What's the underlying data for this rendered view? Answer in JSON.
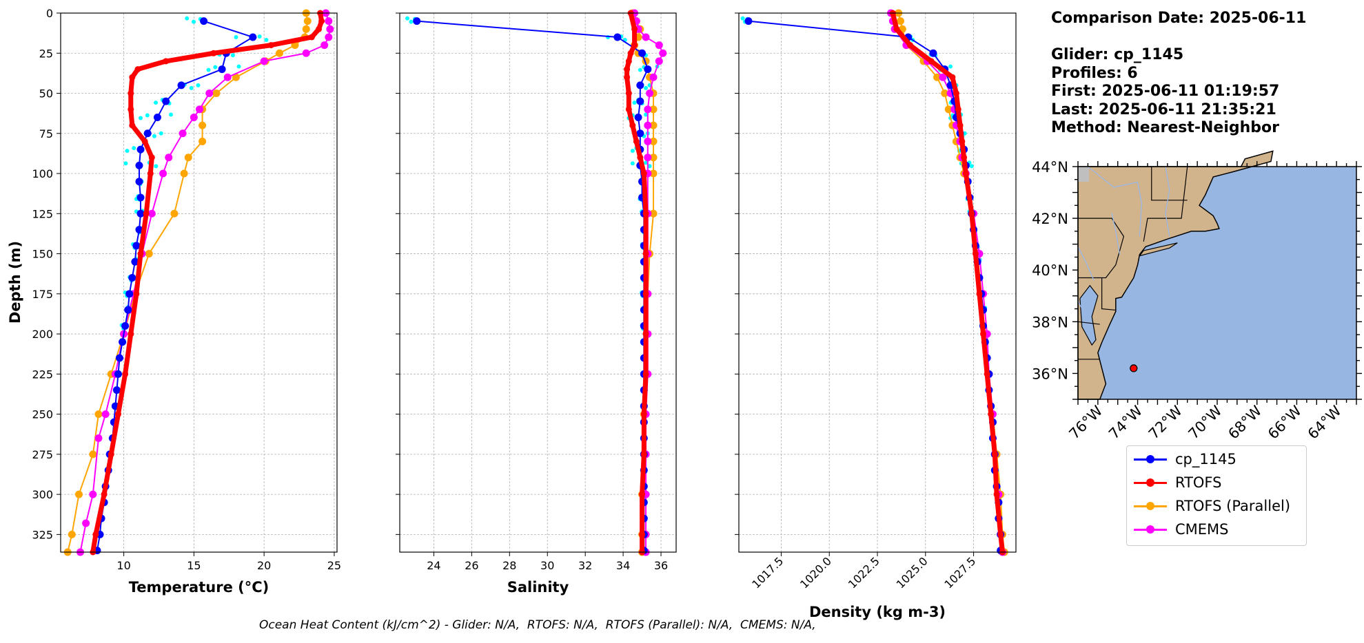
{
  "info": {
    "comparison_date": "Comparison Date: 2025-06-11",
    "glider": "Glider: cp_1145",
    "profiles": "Profiles: 6",
    "first": "First: 2025-06-11 01:19:57",
    "last": "Last: 2025-06-11 21:35:21",
    "method": "Method: Nearest-Neighbor"
  },
  "footer": "Ocean Heat Content (kJ/cm^2) - Glider: N/A,  RTOFS: N/A,  RTOFS (Parallel): N/A,  CMEMS: N/A,",
  "legend": [
    {
      "name": "cp_1145",
      "color": "#0000ff"
    },
    {
      "name": "RTOFS",
      "color": "#ff0000"
    },
    {
      "name": "RTOFS (Parallel)",
      "color": "#ffa500"
    },
    {
      "name": "CMEMS",
      "color": "#ff00ff"
    }
  ],
  "chart_data": [
    {
      "type": "line",
      "xlabel": "Temperature (°C)",
      "ylabel": "Depth (m)",
      "xlim": [
        5.5,
        25.2
      ],
      "ylim": [
        336,
        0
      ],
      "xticks": [
        10,
        15,
        20,
        25
      ],
      "yticks": [
        0,
        25,
        50,
        75,
        100,
        125,
        150,
        175,
        200,
        225,
        250,
        275,
        300,
        325
      ],
      "grid": true,
      "series": [
        {
          "name": "cp_1145",
          "color": "#0000ff",
          "depth": [
            5,
            15,
            25,
            35,
            45,
            55,
            65,
            75,
            85,
            95,
            105,
            115,
            125,
            135,
            145,
            155,
            165,
            175,
            185,
            195,
            205,
            215,
            225,
            235,
            245,
            255,
            265,
            275,
            285,
            295,
            305,
            315,
            325,
            335
          ],
          "values": [
            15.7,
            19.2,
            17.3,
            17.0,
            14.1,
            13.0,
            12.4,
            11.7,
            11.2,
            11.1,
            11.1,
            11.2,
            11.2,
            11.1,
            10.9,
            10.8,
            10.6,
            10.4,
            10.3,
            10.1,
            9.9,
            9.7,
            9.6,
            9.5,
            9.4,
            9.3,
            9.2,
            9.0,
            8.9,
            8.7,
            8.6,
            8.4,
            8.3,
            8.1
          ]
        },
        {
          "name": "RTOFS",
          "color": "#ff0000",
          "depth": [
            0,
            5,
            10,
            15,
            20,
            25,
            30,
            35,
            40,
            50,
            60,
            70,
            80,
            90,
            100,
            125,
            150,
            175,
            200,
            225,
            250,
            275,
            300,
            325,
            336
          ],
          "values": [
            24.0,
            24.1,
            23.9,
            23.4,
            20.5,
            16.4,
            13.0,
            11.0,
            10.6,
            10.5,
            10.5,
            10.6,
            11.5,
            12.0,
            11.9,
            11.6,
            11.2,
            10.9,
            10.5,
            10.1,
            9.6,
            9.1,
            8.6,
            8.0,
            7.8
          ]
        },
        {
          "name": "RTOFS (Parallel)",
          "color": "#ffa500",
          "depth": [
            0,
            5,
            10,
            15,
            20,
            25,
            30,
            40,
            50,
            60,
            70,
            80,
            90,
            100,
            125,
            150,
            175,
            200,
            225,
            250,
            275,
            300,
            325,
            336
          ],
          "values": [
            23.0,
            23.1,
            23.0,
            22.9,
            22.2,
            21.1,
            20.1,
            18.0,
            16.6,
            15.6,
            15.6,
            15.6,
            14.6,
            14.3,
            13.6,
            11.8,
            10.8,
            10.0,
            9.1,
            8.2,
            7.8,
            6.8,
            6.3,
            6.0
          ]
        },
        {
          "name": "CMEMS",
          "color": "#ff00ff",
          "depth": [
            0,
            5,
            10,
            15,
            20,
            25,
            30,
            40,
            50,
            60,
            65,
            75,
            90,
            100,
            125,
            150,
            175,
            185,
            200,
            225,
            250,
            265,
            300,
            318,
            336
          ],
          "values": [
            24.4,
            24.6,
            24.7,
            24.6,
            24.3,
            23.0,
            20.0,
            17.4,
            16.1,
            15.4,
            15.0,
            14.2,
            13.2,
            12.8,
            12.0,
            11.3,
            10.7,
            10.4,
            10.0,
            9.4,
            8.7,
            8.2,
            7.8,
            7.3,
            6.9
          ]
        }
      ]
    },
    {
      "type": "line",
      "xlabel": "Salinity",
      "xlim": [
        22.2,
        36.8
      ],
      "ylim": [
        336,
        0
      ],
      "xticks": [
        24,
        26,
        28,
        30,
        32,
        34,
        36
      ],
      "grid": true,
      "series": [
        {
          "name": "cp_1145",
          "color": "#0000ff",
          "depth": [
            5,
            15,
            25,
            35,
            45,
            55,
            65,
            75,
            85,
            95,
            105,
            115,
            125,
            135,
            145,
            155,
            165,
            175,
            185,
            195,
            205,
            215,
            225,
            235,
            245,
            255,
            265,
            275,
            285,
            295,
            305,
            315,
            325,
            335
          ],
          "values": [
            23.1,
            33.7,
            35.0,
            35.3,
            34.9,
            34.9,
            34.8,
            34.9,
            34.9,
            34.9,
            35.0,
            35.0,
            35.1,
            35.1,
            35.1,
            35.1,
            35.1,
            35.1,
            35.1,
            35.1,
            35.1,
            35.1,
            35.1,
            35.1,
            35.1,
            35.1,
            35.1,
            35.1,
            35.1,
            35.1,
            35.1,
            35.1,
            35.1,
            35.1
          ]
        },
        {
          "name": "RTOFS",
          "color": "#ff0000",
          "depth": [
            0,
            10,
            20,
            25,
            30,
            35,
            40,
            50,
            60,
            70,
            80,
            90,
            100,
            125,
            150,
            175,
            200,
            225,
            250,
            275,
            300,
            325,
            336
          ],
          "values": [
            34.4,
            34.6,
            34.6,
            34.4,
            34.3,
            34.2,
            34.2,
            34.3,
            34.3,
            34.5,
            34.7,
            34.9,
            35.1,
            35.2,
            35.2,
            35.2,
            35.2,
            35.2,
            35.1,
            35.1,
            35.0,
            35.0,
            35.0
          ]
        },
        {
          "name": "RTOFS (Parallel)",
          "color": "#ffa500",
          "depth": [
            0,
            5,
            10,
            15,
            20,
            25,
            30,
            35,
            40,
            50,
            60,
            70,
            80,
            90,
            100,
            125,
            150,
            175,
            200,
            225,
            250,
            275,
            300,
            325,
            336
          ],
          "values": [
            34.5,
            34.7,
            34.9,
            34.8,
            34.6,
            34.8,
            35.2,
            35.3,
            35.4,
            35.6,
            35.6,
            35.6,
            35.6,
            35.6,
            35.6,
            35.6,
            35.4,
            35.3,
            35.3,
            35.2,
            35.1,
            35.1,
            35.0,
            35.0,
            35.0
          ]
        },
        {
          "name": "CMEMS",
          "color": "#ff00ff",
          "depth": [
            0,
            5,
            10,
            15,
            20,
            25,
            30,
            40,
            50,
            60,
            70,
            80,
            90,
            100,
            125,
            150,
            175,
            200,
            225,
            250,
            275,
            300,
            325,
            336
          ],
          "values": [
            34.6,
            34.7,
            34.8,
            35.2,
            35.9,
            36.1,
            35.9,
            35.6,
            35.4,
            35.3,
            35.3,
            35.3,
            35.3,
            35.3,
            35.3,
            35.3,
            35.3,
            35.3,
            35.3,
            35.2,
            35.2,
            35.2,
            35.2,
            35.2
          ]
        }
      ]
    },
    {
      "type": "line",
      "xlabel": "Density (kg m-3)",
      "xlim": [
        1015.3,
        1029.7
      ],
      "ylim": [
        336,
        0
      ],
      "xticks": [
        "1017.5",
        "1020.0",
        "1022.5",
        "1025.0",
        "1027.5"
      ],
      "grid": true,
      "series": [
        {
          "name": "cp_1145",
          "color": "#0000ff",
          "depth": [
            5,
            15,
            25,
            35,
            45,
            55,
            65,
            75,
            85,
            95,
            105,
            115,
            125,
            135,
            145,
            155,
            165,
            175,
            185,
            195,
            205,
            215,
            225,
            235,
            245,
            255,
            265,
            275,
            285,
            295,
            305,
            315,
            325,
            335
          ],
          "values": [
            1015.8,
            1024.1,
            1025.4,
            1026.0,
            1026.3,
            1026.5,
            1026.6,
            1026.8,
            1027.0,
            1027.1,
            1027.2,
            1027.3,
            1027.4,
            1027.5,
            1027.6,
            1027.7,
            1027.8,
            1027.9,
            1028.0,
            1028.0,
            1028.1,
            1028.2,
            1028.3,
            1028.3,
            1028.4,
            1028.5,
            1028.5,
            1028.6,
            1028.6,
            1028.7,
            1028.8,
            1028.8,
            1028.9,
            1028.9
          ]
        },
        {
          "name": "RTOFS",
          "color": "#ff0000",
          "depth": [
            0,
            10,
            20,
            30,
            40,
            50,
            60,
            70,
            80,
            90,
            100,
            125,
            150,
            175,
            200,
            225,
            250,
            275,
            300,
            325,
            336
          ],
          "values": [
            1023.3,
            1023.5,
            1024.2,
            1025.3,
            1026.4,
            1026.6,
            1026.7,
            1026.8,
            1026.9,
            1027.0,
            1027.1,
            1027.4,
            1027.6,
            1027.8,
            1028.0,
            1028.2,
            1028.4,
            1028.6,
            1028.7,
            1028.9,
            1029.0
          ]
        },
        {
          "name": "RTOFS (Parallel)",
          "color": "#ffa500",
          "depth": [
            0,
            5,
            10,
            20,
            30,
            40,
            50,
            60,
            70,
            80,
            90,
            100,
            125,
            150,
            175,
            200,
            225,
            250,
            275,
            300,
            325,
            336
          ],
          "values": [
            1023.6,
            1023.7,
            1023.8,
            1024.0,
            1024.9,
            1025.6,
            1026.0,
            1026.2,
            1026.4,
            1026.6,
            1026.8,
            1027.0,
            1027.4,
            1027.7,
            1027.9,
            1028.1,
            1028.3,
            1028.5,
            1028.7,
            1028.9,
            1029.0,
            1029.1
          ]
        },
        {
          "name": "CMEMS",
          "color": "#ff00ff",
          "depth": [
            0,
            5,
            10,
            20,
            30,
            40,
            50,
            60,
            70,
            80,
            90,
            100,
            125,
            150,
            175,
            200,
            225,
            250,
            275,
            300,
            325,
            336
          ],
          "values": [
            1023.2,
            1023.3,
            1023.4,
            1024.0,
            1025.1,
            1025.9,
            1026.3,
            1026.5,
            1026.6,
            1026.8,
            1026.9,
            1027.1,
            1027.5,
            1027.8,
            1028.0,
            1028.2,
            1028.3,
            1028.5,
            1028.6,
            1028.8,
            1028.9,
            1029.0
          ]
        }
      ]
    },
    {
      "type": "map",
      "lat_ticks": [
        "44°N",
        "42°N",
        "40°N",
        "38°N",
        "36°N"
      ],
      "lon_ticks": [
        "76°W",
        "74°W",
        "72°W",
        "70°W",
        "68°W",
        "66°W",
        "64°W"
      ],
      "extent": {
        "lon": [
          -77,
          -63
        ],
        "lat": [
          35,
          44
        ]
      },
      "glider_position": {
        "lon": -74.2,
        "lat": 36.2,
        "color": "#ff0000"
      },
      "land_color": "#d2b48c",
      "ocean_color": "#97b6e1"
    }
  ]
}
